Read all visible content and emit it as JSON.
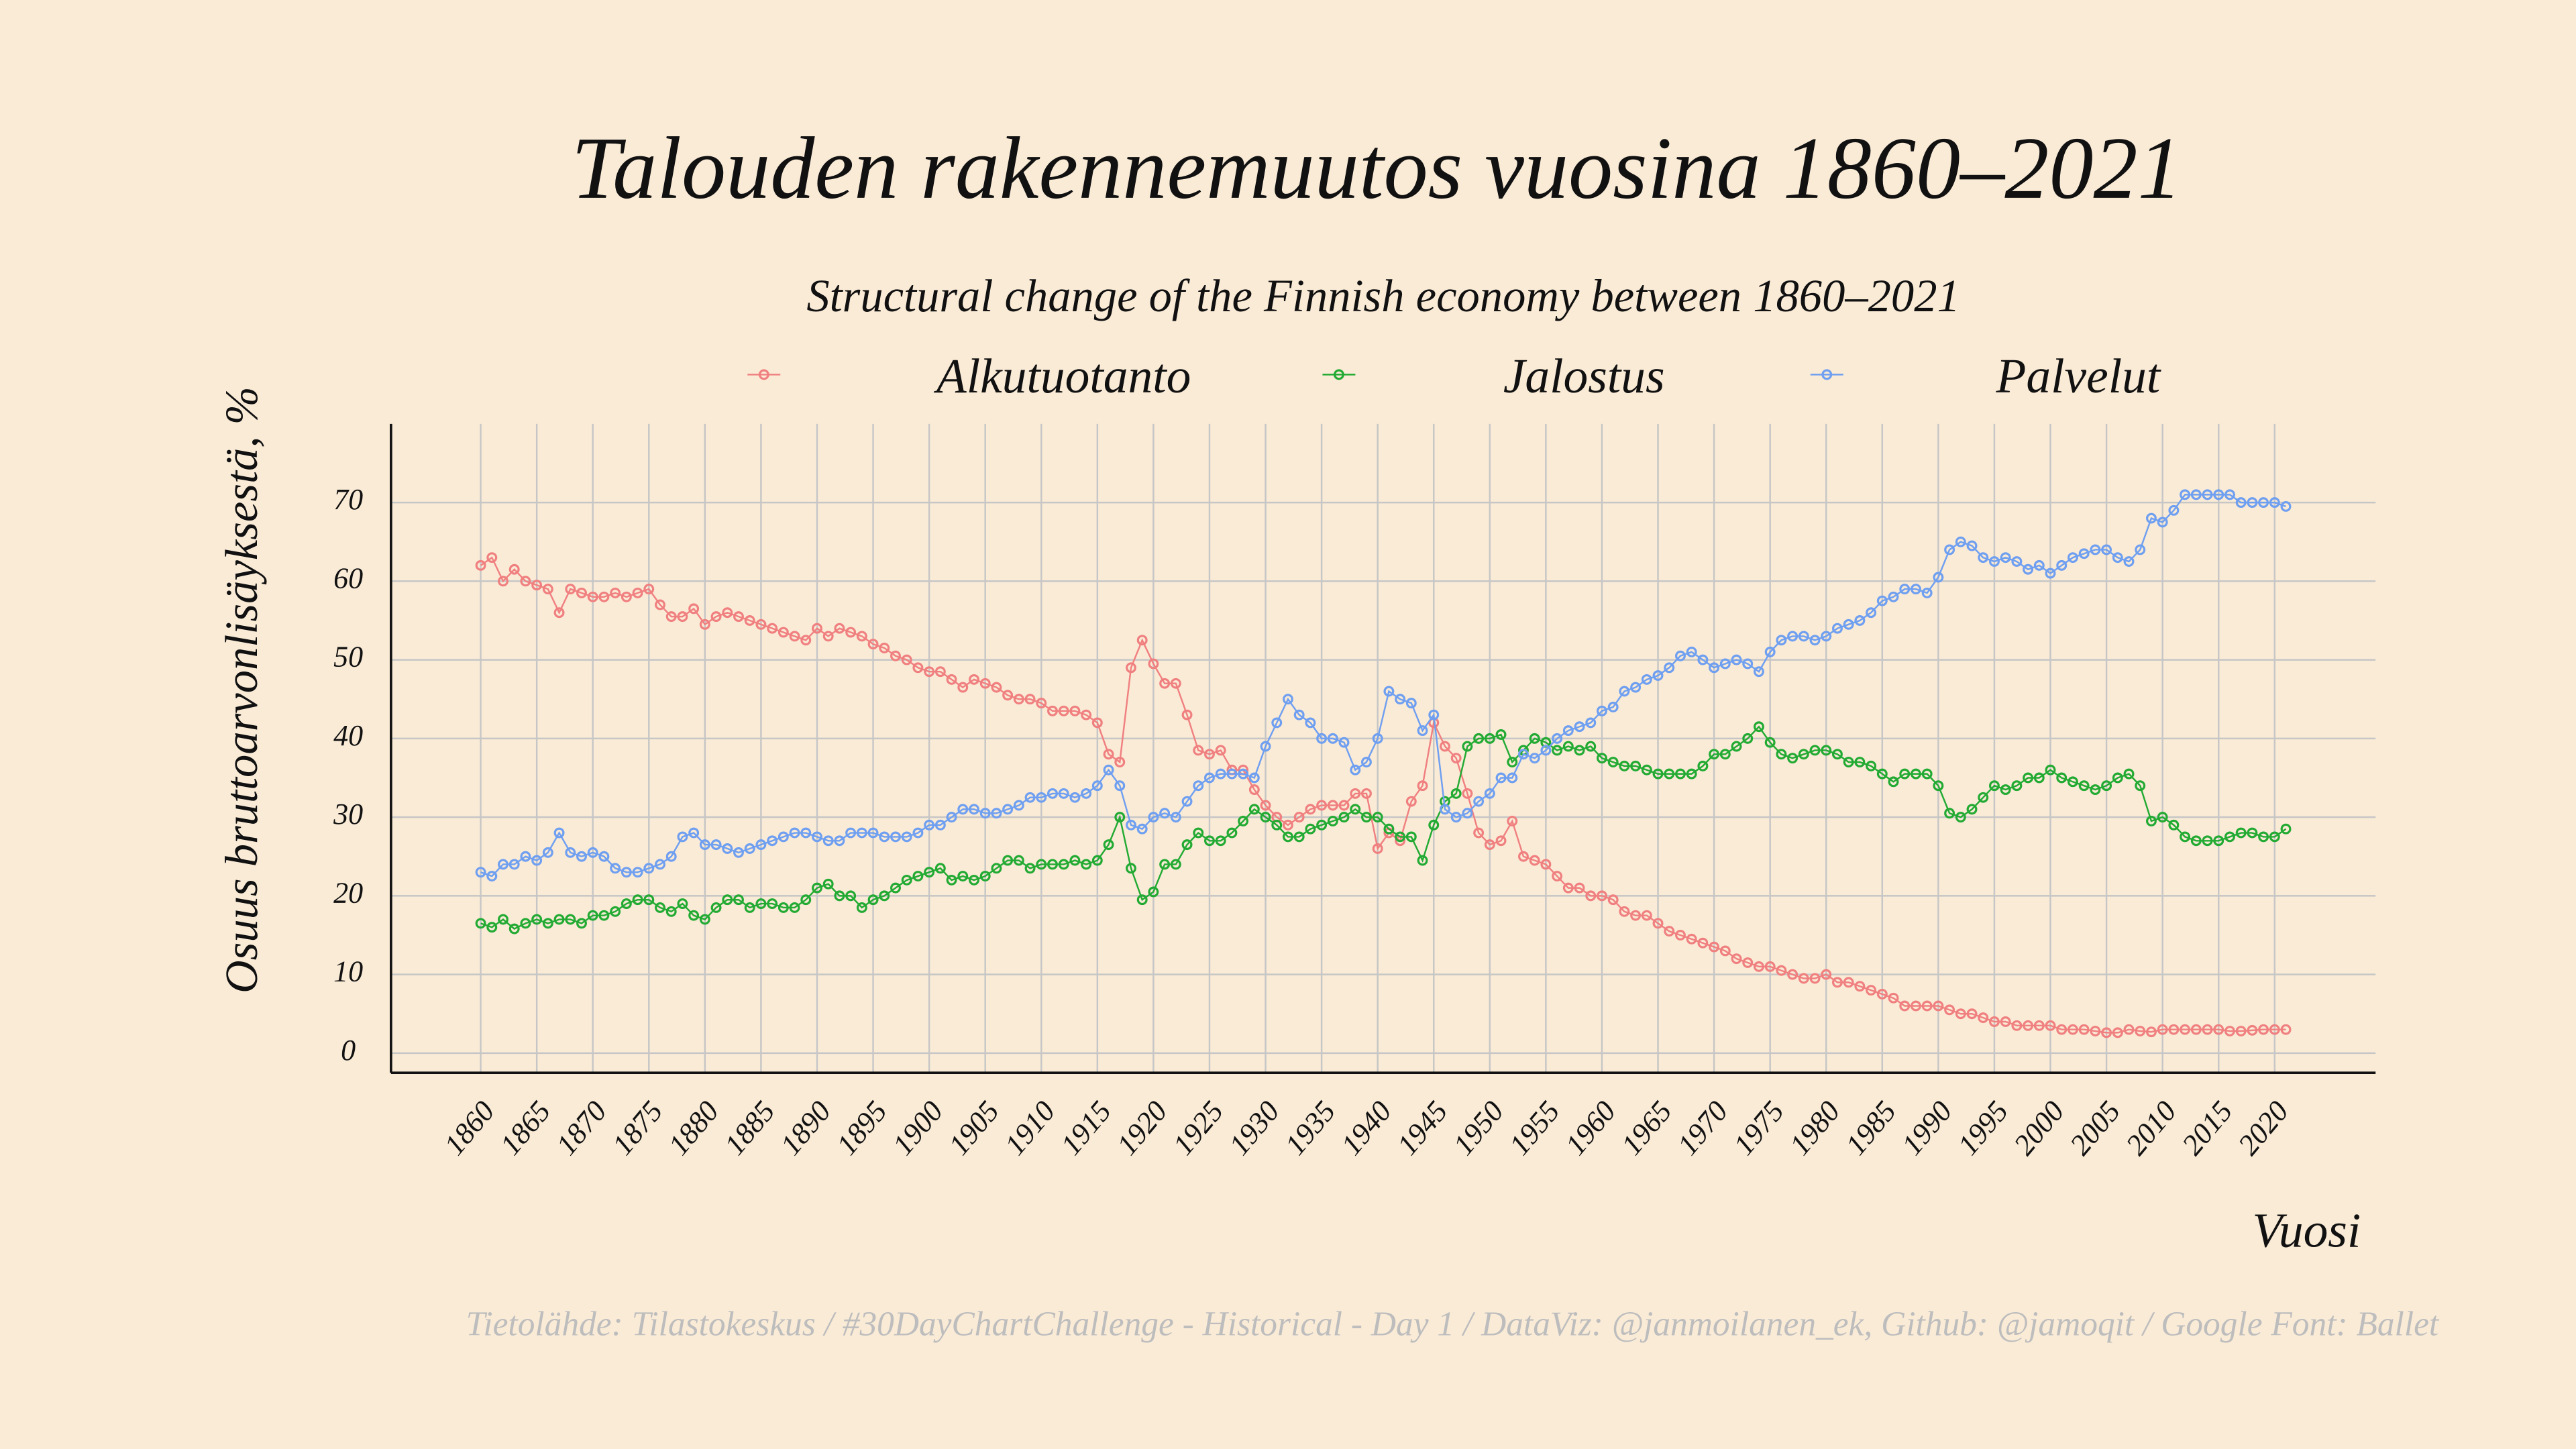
{
  "chart_data": {
    "type": "line",
    "title": "Talouden rakennemuutos vuosina 1860–2021",
    "subtitle": "Structural change of the Finnish economy between 1860–2021",
    "y_label": "Osuus bruttoarvonlisäyksestä, %",
    "x_label": "Vuosi",
    "caption": "Tietolähde: Tilastokeskus / #30DayChartChallenge - Historical - Day 1 / DataViz: @janmoilanen_ek, Github: @jamoqit / Google Font: Ballet",
    "legend": "top",
    "grid": true,
    "x": [
      1860,
      1861,
      1862,
      1863,
      1864,
      1865,
      1866,
      1867,
      1868,
      1869,
      1870,
      1871,
      1872,
      1873,
      1874,
      1875,
      1876,
      1877,
      1878,
      1879,
      1880,
      1881,
      1882,
      1883,
      1884,
      1885,
      1886,
      1887,
      1888,
      1889,
      1890,
      1891,
      1892,
      1893,
      1894,
      1895,
      1896,
      1897,
      1898,
      1899,
      1900,
      1901,
      1902,
      1903,
      1904,
      1905,
      1906,
      1907,
      1908,
      1909,
      1910,
      1911,
      1912,
      1913,
      1914,
      1915,
      1916,
      1917,
      1918,
      1919,
      1920,
      1921,
      1922,
      1923,
      1924,
      1925,
      1926,
      1927,
      1928,
      1929,
      1930,
      1931,
      1932,
      1933,
      1934,
      1935,
      1936,
      1937,
      1938,
      1939,
      1940,
      1941,
      1942,
      1943,
      1944,
      1945,
      1946,
      1947,
      1948,
      1949,
      1950,
      1951,
      1952,
      1953,
      1954,
      1955,
      1956,
      1957,
      1958,
      1959,
      1960,
      1961,
      1962,
      1963,
      1964,
      1965,
      1966,
      1967,
      1968,
      1969,
      1970,
      1971,
      1972,
      1973,
      1974,
      1975,
      1976,
      1977,
      1978,
      1979,
      1980,
      1981,
      1982,
      1983,
      1984,
      1985,
      1986,
      1987,
      1988,
      1989,
      1990,
      1991,
      1992,
      1993,
      1994,
      1995,
      1996,
      1997,
      1998,
      1999,
      2000,
      2001,
      2002,
      2003,
      2004,
      2005,
      2006,
      2007,
      2008,
      2009,
      2010,
      2011,
      2012,
      2013,
      2014,
      2015,
      2016,
      2017,
      2018,
      2019,
      2020,
      2021
    ],
    "series": [
      {
        "name": "Alkutuotanto",
        "color": "#f08080",
        "values": [
          62,
          63,
          60,
          61.5,
          60,
          59.5,
          59,
          56,
          59,
          58.5,
          58,
          58,
          58.5,
          58,
          58.5,
          59,
          57,
          55.5,
          55.5,
          56.5,
          54.5,
          55.5,
          56,
          55.5,
          55,
          54.5,
          54,
          53.5,
          53,
          52.5,
          54,
          53,
          54,
          53.5,
          53,
          52,
          51.5,
          50.5,
          50,
          49,
          48.5,
          48.5,
          47.5,
          46.5,
          47.5,
          47,
          46.5,
          45.5,
          45,
          45,
          44.5,
          43.5,
          43.5,
          43.5,
          43,
          42,
          38,
          37,
          49,
          52.5,
          49.5,
          47,
          47,
          43,
          38.5,
          38,
          38.5,
          36,
          36,
          33.5,
          31.5,
          30,
          29,
          30,
          31,
          31.5,
          31.5,
          31.5,
          33,
          33,
          26,
          28,
          27,
          32,
          34,
          42,
          39,
          37.5,
          33,
          28,
          26.5,
          27,
          29.5,
          25,
          24.5,
          24,
          22.5,
          21,
          21,
          20,
          20,
          19.5,
          18,
          17.5,
          17.5,
          16.5,
          15.5,
          15,
          14.5,
          14,
          13.5,
          13,
          12,
          11.5,
          11,
          11,
          10.5,
          10,
          9.5,
          9.5,
          10,
          9,
          9,
          8.5,
          8,
          7.5,
          7,
          6,
          6,
          6,
          6,
          5.5,
          5,
          5,
          4.5,
          4,
          4,
          3.5,
          3.5,
          3.5,
          3.5,
          3,
          3,
          3,
          2.8,
          2.6,
          2.6,
          3,
          2.8,
          2.7,
          3,
          3,
          3,
          3,
          3,
          3,
          2.8,
          2.8,
          2.9,
          3,
          3,
          3
        ]
      },
      {
        "name": "Jalostus",
        "color": "#22aa33",
        "values": [
          16.5,
          16,
          17,
          15.8,
          16.5,
          17,
          16.5,
          17,
          17,
          16.5,
          17.5,
          17.5,
          18,
          19,
          19.5,
          19.5,
          18.5,
          18,
          19,
          17.5,
          17,
          18.5,
          19.5,
          19.5,
          18.5,
          19,
          19,
          18.5,
          18.5,
          19.5,
          21,
          21.5,
          20,
          20,
          18.5,
          19.5,
          20,
          21,
          22,
          22.5,
          23,
          23.5,
          22,
          22.5,
          22,
          22.5,
          23.5,
          24.5,
          24.5,
          23.5,
          24,
          24,
          24,
          24.5,
          24,
          24.5,
          26.5,
          30,
          23.5,
          19.5,
          20.5,
          24,
          24,
          26.5,
          28,
          27,
          27,
          28,
          29.5,
          31,
          30,
          29,
          27.5,
          27.5,
          28.5,
          29,
          29.5,
          30,
          31,
          30,
          30,
          28.5,
          27.5,
          27.5,
          24.5,
          29,
          32,
          33,
          39,
          40,
          40,
          40.5,
          37,
          38.5,
          40,
          39.5,
          38.5,
          39,
          38.5,
          39,
          37.5,
          37,
          36.5,
          36.5,
          36,
          35.5,
          35.5,
          35.5,
          35.5,
          36.5,
          38,
          38,
          39,
          40,
          41.5,
          39.5,
          38,
          37.5,
          38,
          38.5,
          38.5,
          38,
          37,
          37,
          36.5,
          35.5,
          34.5,
          35.5,
          35.5,
          35.5,
          34,
          30.5,
          30,
          31,
          32.5,
          34,
          33.5,
          34,
          35,
          35,
          36,
          35,
          34.5,
          34,
          33.5,
          34,
          35,
          35.5,
          34,
          29.5,
          30,
          29,
          27.5,
          27,
          27,
          27,
          27.5,
          28,
          28,
          27.5,
          27.5,
          28.5
        ]
      },
      {
        "name": "Palvelut",
        "color": "#6f9ff0",
        "values": [
          23,
          22.5,
          24,
          24,
          25,
          24.5,
          25.5,
          28,
          25.5,
          25,
          25.5,
          25,
          23.5,
          23,
          23,
          23.5,
          24,
          25,
          27.5,
          28,
          26.5,
          26.5,
          26,
          25.5,
          26,
          26.5,
          27,
          27.5,
          28,
          28,
          27.5,
          27,
          27,
          28,
          28,
          28,
          27.5,
          27.5,
          27.5,
          28,
          29,
          29,
          30,
          31,
          31,
          30.5,
          30.5,
          31,
          31.5,
          32.5,
          32.5,
          33,
          33,
          32.5,
          33,
          34,
          36,
          34,
          29,
          28.5,
          30,
          30.5,
          30,
          32,
          34,
          35,
          35.5,
          35.5,
          35.5,
          35,
          39,
          42,
          45,
          43,
          42,
          40,
          40,
          39.5,
          36,
          37,
          40,
          46,
          45,
          44.5,
          41,
          43,
          31,
          30,
          30.5,
          32,
          33,
          35,
          35,
          38,
          37.5,
          38.5,
          40,
          41,
          41.5,
          42,
          43.5,
          44,
          46,
          46.5,
          47.5,
          48,
          49,
          50.5,
          51,
          50,
          49,
          49.5,
          50,
          49.5,
          48.5,
          51,
          52.5,
          53,
          53,
          52.5,
          53,
          54,
          54.5,
          55,
          56,
          57.5,
          58,
          59,
          59,
          58.5,
          60.5,
          64,
          65,
          64.5,
          63,
          62.5,
          63,
          62.5,
          61.5,
          62,
          61,
          62,
          63,
          63.5,
          64,
          64,
          63,
          62.5,
          64,
          68,
          67.5,
          69,
          71,
          71,
          71,
          71,
          71,
          70,
          70,
          70,
          70,
          69.5
        ]
      }
    ],
    "xlim": [
      1852,
      2029
    ],
    "xticks": [
      1860,
      1865,
      1870,
      1875,
      1880,
      1885,
      1890,
      1895,
      1900,
      1905,
      1910,
      1915,
      1920,
      1925,
      1930,
      1935,
      1940,
      1945,
      1950,
      1955,
      1960,
      1965,
      1970,
      1975,
      1980,
      1985,
      1990,
      1995,
      2000,
      2005,
      2010,
      2015,
      2020
    ],
    "ylim": [
      -2.5,
      80
    ],
    "yticks": [
      0,
      10,
      20,
      30,
      40,
      50,
      60,
      70
    ]
  }
}
